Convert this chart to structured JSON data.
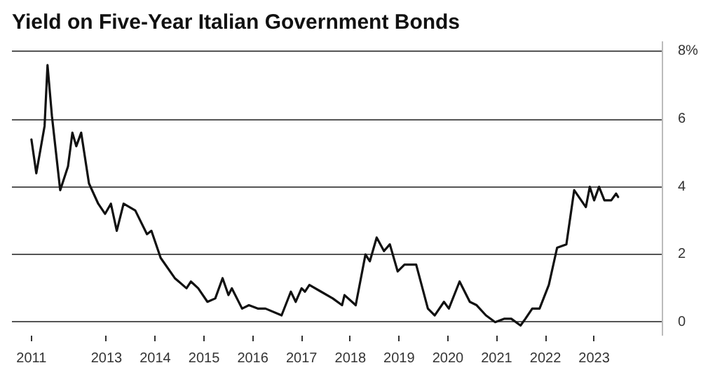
{
  "chart_data": {
    "type": "line",
    "title": "Yield on Five-Year Italian Government Bonds",
    "x": [
      2011.46,
      2011.56,
      2011.73,
      2011.79,
      2011.88,
      2012.05,
      2012.21,
      2012.3,
      2012.38,
      2012.48,
      2012.64,
      2012.83,
      2012.97,
      2013.09,
      2013.21,
      2013.35,
      2013.59,
      2013.83,
      2013.92,
      2014.11,
      2014.4,
      2014.64,
      2014.73,
      2014.88,
      2015.07,
      2015.23,
      2015.38,
      2015.5,
      2015.57,
      2015.78,
      2015.92,
      2016.11,
      2016.26,
      2016.59,
      2016.78,
      2016.88,
      2017.0,
      2017.07,
      2017.16,
      2017.4,
      2017.64,
      2017.83,
      2017.88,
      2018.11,
      2018.31,
      2018.4,
      2018.54,
      2018.69,
      2018.81,
      2018.97,
      2019.11,
      2019.26,
      2019.35,
      2019.59,
      2019.73,
      2019.92,
      2020.02,
      2020.24,
      2020.45,
      2020.59,
      2020.78,
      2020.97,
      2021.16,
      2021.3,
      2021.49,
      2021.59,
      2021.73,
      2021.88,
      2022.07,
      2022.24,
      2022.43,
      2022.59,
      2022.83,
      2022.91,
      2023.0,
      2023.1,
      2023.21,
      2023.35,
      2023.45,
      2023.49
    ],
    "series": [
      {
        "color": "#111111",
        "values": [
          5.4,
          4.4,
          5.8,
          7.6,
          6.1,
          3.9,
          4.6,
          5.6,
          5.2,
          5.6,
          4.1,
          3.5,
          3.2,
          3.5,
          2.7,
          3.5,
          3.3,
          2.6,
          2.7,
          1.9,
          1.3,
          1.0,
          1.2,
          1.0,
          0.6,
          0.7,
          1.3,
          0.8,
          1.0,
          0.4,
          0.5,
          0.4,
          0.4,
          0.2,
          0.9,
          0.6,
          1.0,
          0.9,
          1.1,
          0.9,
          0.7,
          0.5,
          0.8,
          0.5,
          2.0,
          1.8,
          2.5,
          2.1,
          2.3,
          1.5,
          1.7,
          1.7,
          1.7,
          0.4,
          0.2,
          0.6,
          0.4,
          1.2,
          0.6,
          0.5,
          0.2,
          0.0,
          0.1,
          0.1,
          -0.1,
          0.1,
          0.4,
          0.4,
          1.1,
          2.2,
          2.3,
          3.9,
          3.4,
          4.0,
          3.6,
          4.0,
          3.6,
          3.6,
          3.8,
          3.7
        ]
      }
    ],
    "xlim": [
      2011.06,
      2024.4
    ],
    "xticks": [
      {
        "value": 2011.46,
        "label": "2011"
      },
      2013,
      2014,
      2015,
      2016,
      2017,
      2018,
      2019,
      2020,
      2021,
      2022,
      2023
    ],
    "ylim": [
      -0.4,
      8.3
    ],
    "yticks": [
      0,
      2,
      4,
      6,
      {
        "value": 8,
        "label": "8%"
      }
    ],
    "grid": "y",
    "marker": "none",
    "line_style": "solid"
  }
}
